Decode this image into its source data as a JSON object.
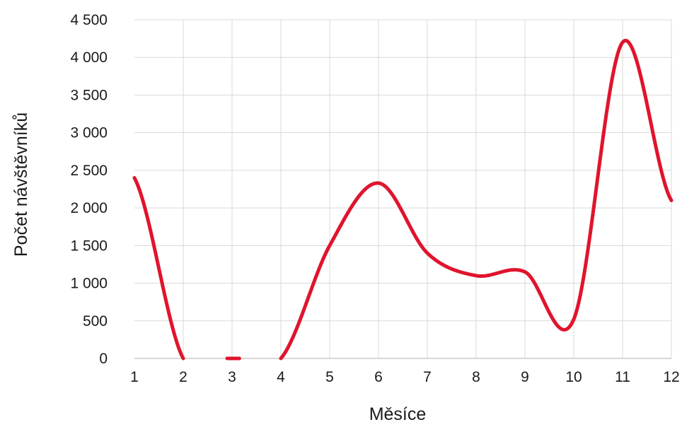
{
  "chart_data": {
    "type": "line",
    "title": "",
    "xlabel": "Měsíce",
    "ylabel": "Počet návštěvníků",
    "x": [
      1,
      2,
      3,
      4,
      5,
      6,
      7,
      8,
      9,
      10,
      11,
      12
    ],
    "x_tick_labels": [
      "1",
      "2",
      "3",
      "4",
      "5",
      "6",
      "7",
      "8",
      "9",
      "10",
      "11",
      "12"
    ],
    "y_tick_labels": [
      "0",
      "500",
      "1 000",
      "1 500",
      "2 000",
      "2 500",
      "3 000",
      "3 500",
      "4 000",
      "4 500"
    ],
    "y_ticks": [
      0,
      500,
      1000,
      1500,
      2000,
      2500,
      3000,
      3500,
      4000,
      4500
    ],
    "xlim": [
      1,
      12
    ],
    "ylim": [
      0,
      4500
    ],
    "grid": true,
    "smooth": true,
    "series": [
      {
        "values": [
          2400,
          0,
          0,
          0,
          1500,
          2330,
          1400,
          1100,
          1150,
          520,
          4200,
          2100
        ],
        "segments": [
          [
            1,
            2
          ],
          [
            2.9,
            3.15
          ],
          [
            4,
            12
          ]
        ],
        "color": "#e0142d"
      }
    ]
  }
}
